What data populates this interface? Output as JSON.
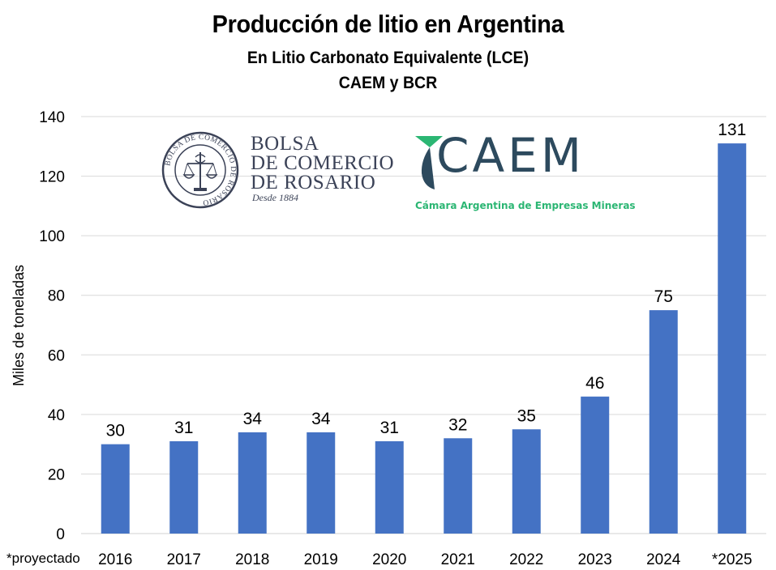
{
  "header": {
    "title": "Producción de litio en Argentina",
    "subtitle1": "En Litio Carbonato Equivalente (LCE)",
    "subtitle2": "CAEM y BCR"
  },
  "logos": {
    "bcr": {
      "line1": "BOLSA",
      "line2": "DE COMERCIO",
      "line3": "DE ROSARIO",
      "since": "Desde 1884",
      "seal_text": "BOLSA DE COMERCIO DE ROSARIO"
    },
    "caem": {
      "word": "CAEM",
      "tagline": "Cámara Argentina de Empresas Mineras"
    }
  },
  "footnote": "*proyectado",
  "colors": {
    "bar": "#4472c4",
    "grid": "#d9d9d9",
    "bcr": "#3b4257",
    "caem_dark": "#2d4a5e",
    "caem_green": "#2bb673"
  },
  "chart_data": {
    "type": "bar",
    "title": "Producción de litio en Argentina",
    "ylabel": "Miles de toneladas",
    "xlabel": "",
    "categories": [
      "2016",
      "2017",
      "2018",
      "2019",
      "2020",
      "2021",
      "2022",
      "2023",
      "2024",
      "*2025"
    ],
    "values": [
      30,
      31,
      34,
      34,
      31,
      32,
      35,
      46,
      75,
      131
    ],
    "ylim": [
      0,
      140
    ],
    "yticks": [
      0,
      20,
      40,
      60,
      80,
      100,
      120,
      140
    ],
    "grid": true,
    "legend": "none"
  }
}
